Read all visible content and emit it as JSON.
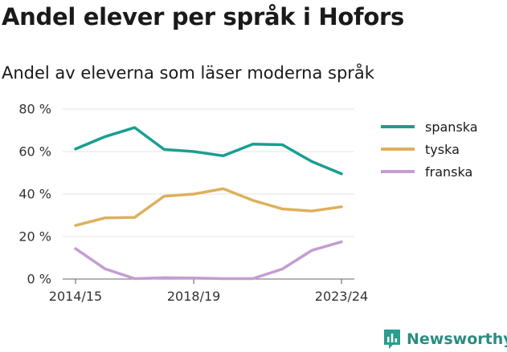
{
  "title": "Andel elever per språk i Hofors",
  "subtitle": "Andel av eleverna som läser moderna språk",
  "brand": {
    "name": "Newsworthy",
    "color": "#2a9d8f",
    "icon": "newsworthy-logo-icon"
  },
  "chart_data": {
    "type": "line",
    "title": "Andel elever per språk i Hofors",
    "subtitle": "Andel av eleverna som läser moderna språk",
    "x": [
      "2014/15",
      "2015/16",
      "2016/17",
      "2017/18",
      "2018/19",
      "2019/20",
      "2020/21",
      "2021/22",
      "2022/23",
      "2023/24"
    ],
    "x_tick_labels": [
      "2014/15",
      "2018/19",
      "2023/24"
    ],
    "ylim": [
      0,
      80
    ],
    "y_ticks": [
      0,
      20,
      40,
      60,
      80
    ],
    "y_tick_labels": [
      "0 %",
      "20 %",
      "40 %",
      "60 %",
      "80 %"
    ],
    "grid": true,
    "legend_position": "right",
    "series": [
      {
        "name": "spanska",
        "color": "#1a9e91",
        "values": [
          61.2,
          67,
          71.3,
          61,
          60,
          58,
          63.5,
          63.2,
          55.3,
          49.5
        ]
      },
      {
        "name": "tyska",
        "color": "#deb05c",
        "values": [
          25.2,
          28.8,
          29,
          39,
          40,
          42.5,
          37,
          33,
          32,
          34
        ]
      },
      {
        "name": "franska",
        "color": "#c49dd1",
        "values": [
          14.3,
          4.8,
          0.2,
          0.6,
          0.5,
          0.2,
          0.2,
          4.7,
          13.5,
          17.5
        ]
      }
    ]
  }
}
